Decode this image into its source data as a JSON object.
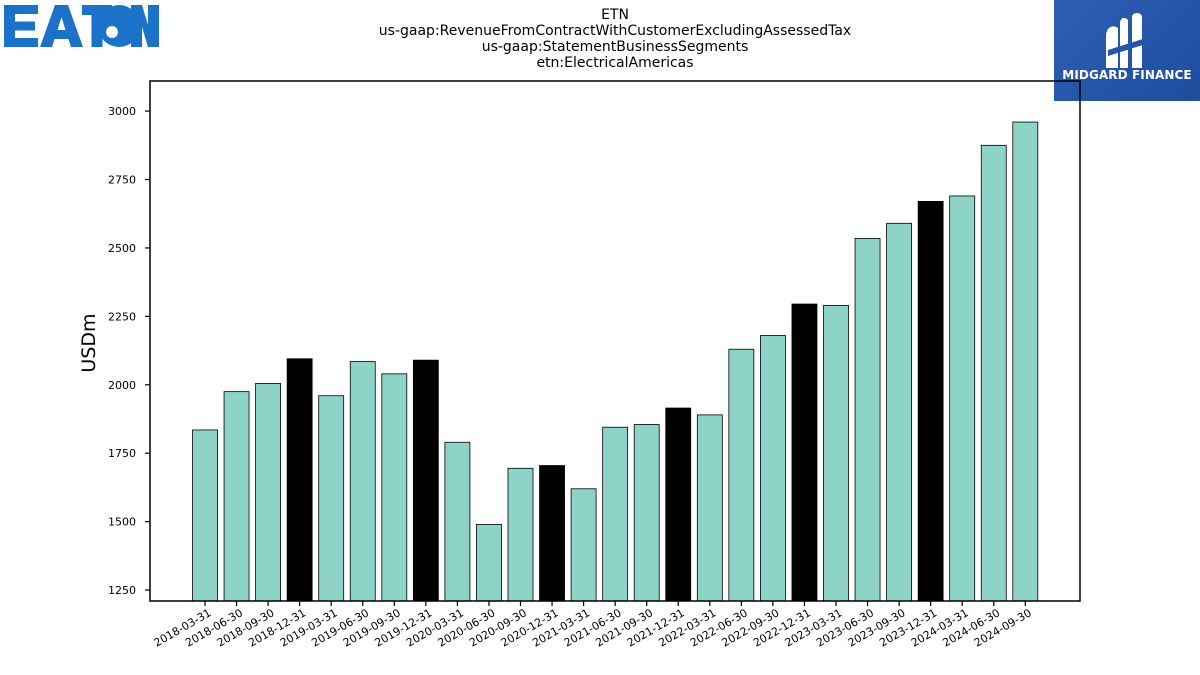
{
  "header": {
    "company_logo_text": "EATON",
    "watermark_text": "MIDGARD FINANCE"
  },
  "chart_data": {
    "type": "bar",
    "title_lines": [
      "ETN",
      "us-gaap:RevenueFromContractWithCustomerExcludingAssessedTax",
      "us-gaap:StatementBusinessSegments",
      "etn:ElectricalAmericas"
    ],
    "xlabel": "",
    "ylabel": "USDm",
    "ylim": [
      1210,
      3110
    ],
    "yticks": [
      1250,
      1500,
      1750,
      2000,
      2250,
      2500,
      2750,
      3000
    ],
    "grid": false,
    "categories": [
      "2018-03-31",
      "2018-06-30",
      "2018-09-30",
      "2018-12-31",
      "2019-03-31",
      "2019-06-30",
      "2019-09-30",
      "2019-12-31",
      "2020-03-31",
      "2020-06-30",
      "2020-09-30",
      "2020-12-31",
      "2021-03-31",
      "2021-06-30",
      "2021-09-30",
      "2021-12-31",
      "2022-03-31",
      "2022-06-30",
      "2022-09-30",
      "2022-12-31",
      "2023-03-31",
      "2023-06-30",
      "2023-09-30",
      "2023-12-31",
      "2024-03-31",
      "2024-06-30",
      "2024-09-30"
    ],
    "values": [
      1835,
      1975,
      2005,
      2095,
      1960,
      2085,
      2040,
      2090,
      1790,
      1490,
      1695,
      1705,
      1620,
      1845,
      1855,
      1915,
      1890,
      2130,
      2180,
      2295,
      2290,
      2535,
      2590,
      2670,
      2690,
      2875,
      2960
    ],
    "colors": {
      "quarter": "#8dd3c7",
      "year_end": "#000000",
      "edge": "#000000"
    }
  }
}
